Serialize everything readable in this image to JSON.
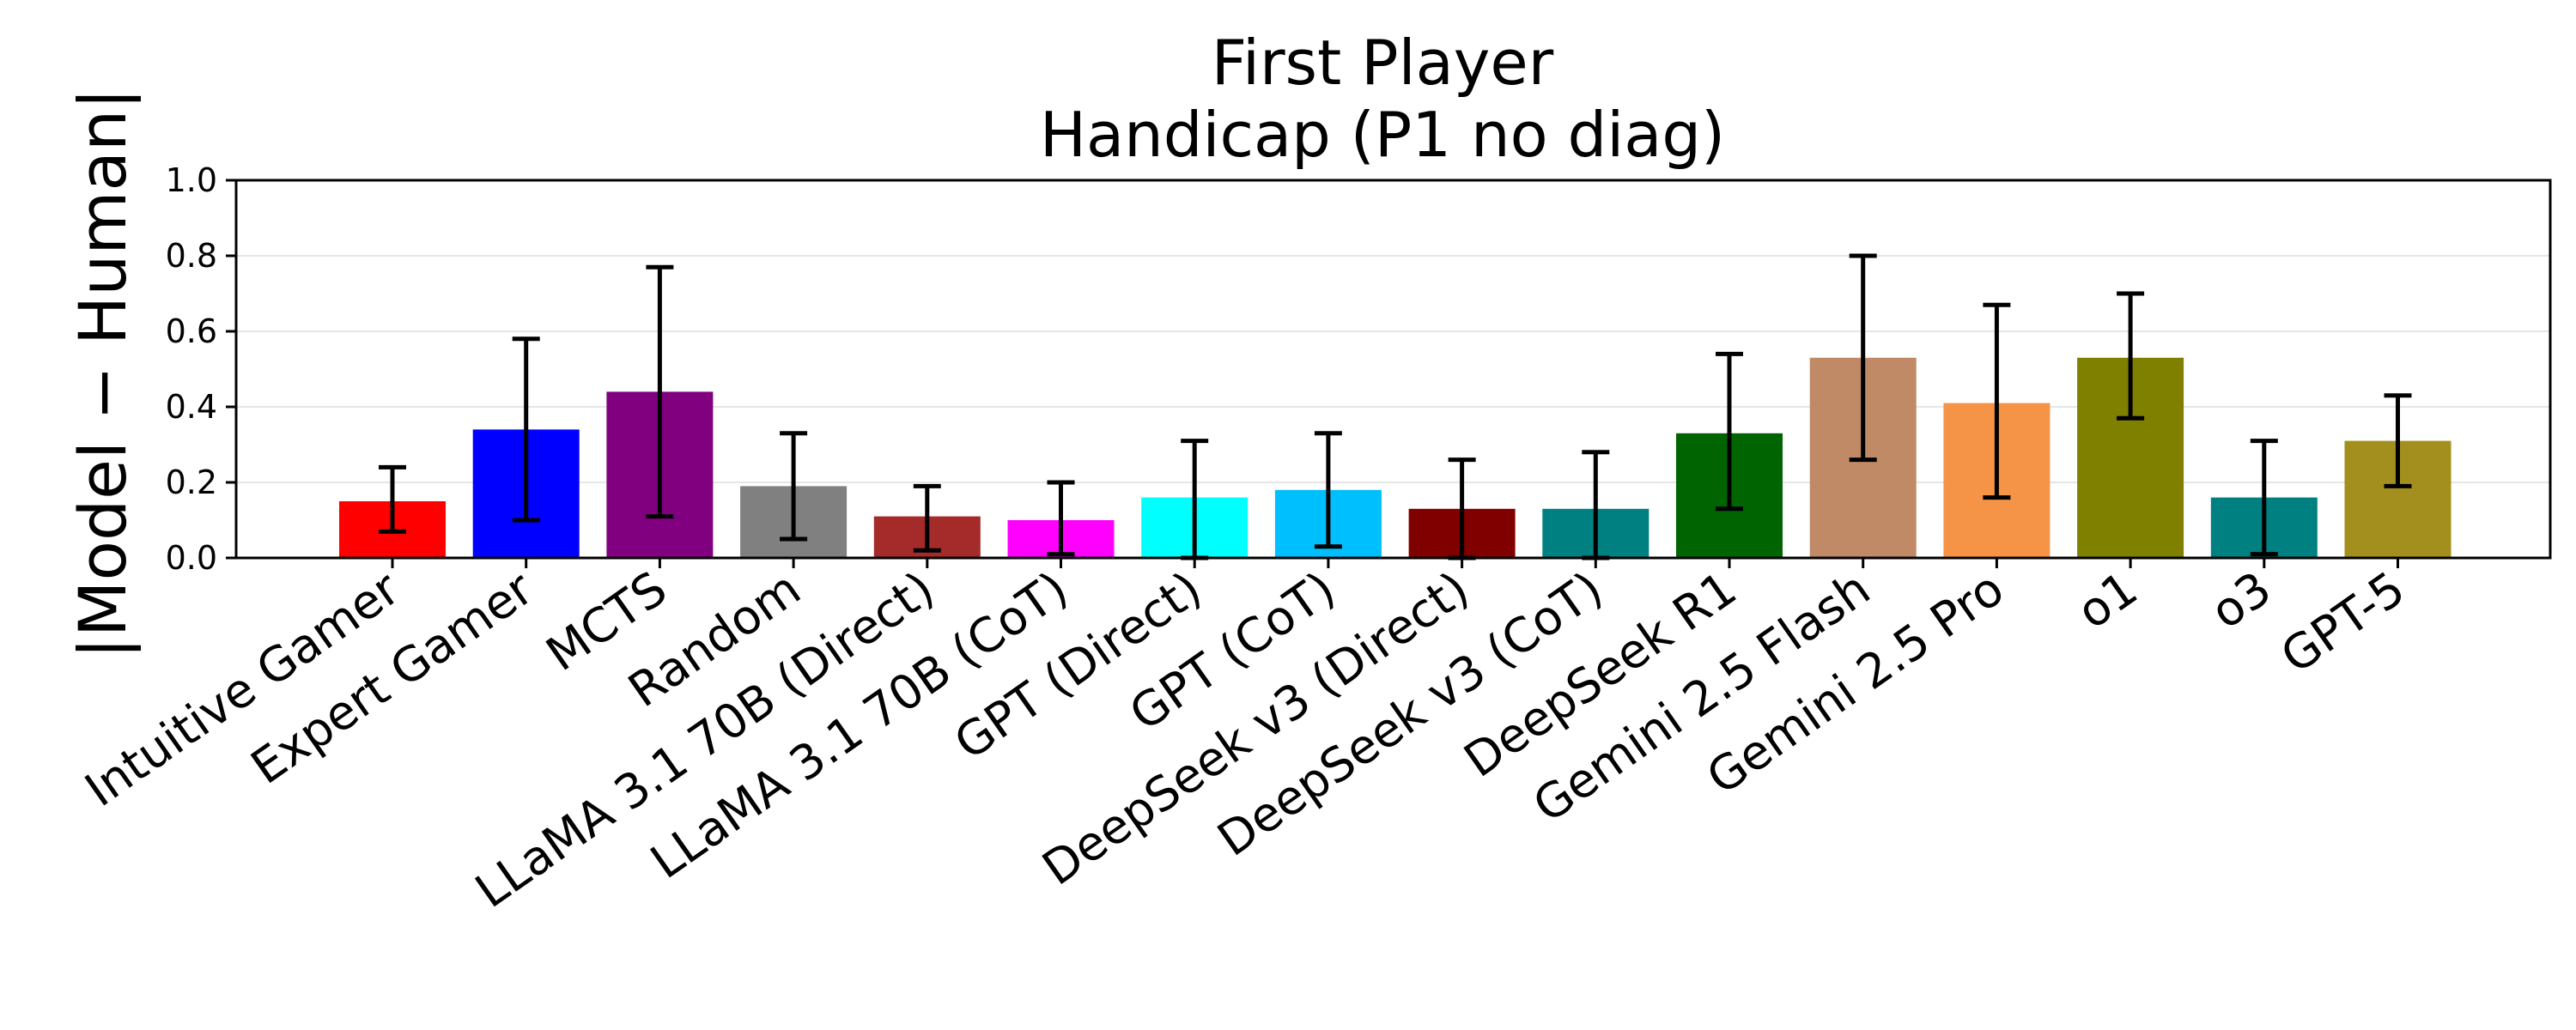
{
  "chart_data": {
    "type": "bar",
    "title": [
      "First Player",
      "Handicap (P1 no diag)"
    ],
    "xlabel": "",
    "ylabel": "|Model − Human|",
    "ylim": [
      0.0,
      1.0
    ],
    "yticks": [
      "0.0",
      "0.2",
      "0.4",
      "0.6",
      "0.8",
      "1.0"
    ],
    "ytick_values": [
      0.0,
      0.2,
      0.4,
      0.6,
      0.8,
      1.0
    ],
    "grid": "horizontal",
    "categories": [
      "Intuitive Gamer",
      "Expert Gamer",
      "MCTS",
      "Random",
      "LLaMA 3.1 70B (Direct)",
      "LLaMA 3.1 70B (CoT)",
      "GPT (Direct)",
      "GPT (CoT)",
      "DeepSeek v3 (Direct)",
      "DeepSeek v3 (CoT)",
      "DeepSeek R1",
      "Gemini 2.5 Flash",
      "Gemini 2.5 Pro",
      "o1",
      "o3",
      "GPT-5"
    ],
    "values": [
      0.15,
      0.34,
      0.44,
      0.19,
      0.11,
      0.1,
      0.16,
      0.18,
      0.13,
      0.13,
      0.33,
      0.53,
      0.41,
      0.53,
      0.16,
      0.31
    ],
    "err_low": [
      0.07,
      0.1,
      0.11,
      0.05,
      0.02,
      0.01,
      0.0,
      0.03,
      0.0,
      0.0,
      0.13,
      0.26,
      0.16,
      0.37,
      0.01,
      0.19
    ],
    "err_high": [
      0.24,
      0.58,
      0.77,
      0.33,
      0.19,
      0.2,
      0.31,
      0.33,
      0.26,
      0.28,
      0.54,
      0.8,
      0.67,
      0.7,
      0.31,
      0.43
    ],
    "colors": [
      "#ff0000",
      "#0000ff",
      "#800080",
      "#808080",
      "#a52a2a",
      "#ff00ff",
      "#00ffff",
      "#00bfff",
      "#800000",
      "#008080",
      "#006400",
      "#c08a66",
      "#f59346",
      "#808000",
      "#008080",
      "#a38f1d"
    ]
  }
}
